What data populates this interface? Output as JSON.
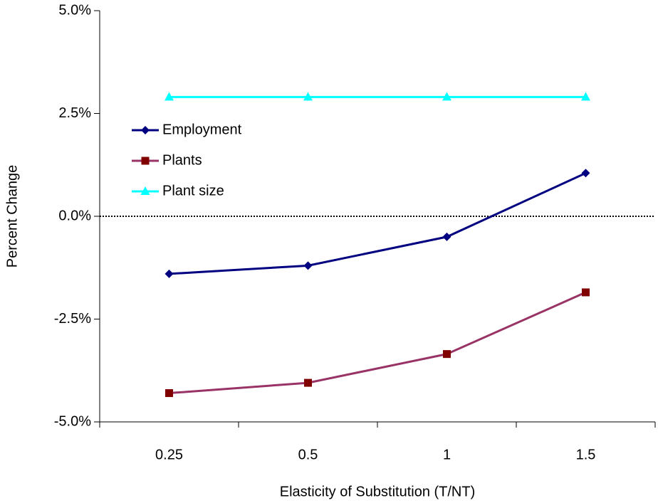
{
  "chart_data": {
    "type": "line",
    "xlabel": "Elasticity of Substitution (T/NT)",
    "ylabel": "Percent Change",
    "categories": [
      "0.25",
      "0.5",
      "1",
      "1.5"
    ],
    "series": [
      {
        "name": "Employment",
        "color": "#000080",
        "marker_color": "#000080",
        "marker": "diamond",
        "values": [
          -1.4,
          -1.2,
          -0.5,
          1.05
        ]
      },
      {
        "name": "Plants",
        "color": "#993366",
        "marker_color": "#800000",
        "marker": "square",
        "values": [
          -4.3,
          -4.05,
          -3.35,
          -1.85
        ]
      },
      {
        "name": "Plant size",
        "color": "#00FFFF",
        "marker_color": "#00FFFF",
        "marker": "triangle",
        "values": [
          2.9,
          2.9,
          2.9,
          2.9
        ]
      }
    ],
    "ylim": [
      -5,
      5
    ],
    "yticks": [
      {
        "value": -5,
        "label": "-5.0%"
      },
      {
        "value": -2.5,
        "label": "-2.5%"
      },
      {
        "value": 0,
        "label": "0.0%"
      },
      {
        "value": 2.5,
        "label": "2.5%"
      },
      {
        "value": 5,
        "label": "5.0%"
      }
    ],
    "zero_line": true,
    "legend": "upper left"
  }
}
